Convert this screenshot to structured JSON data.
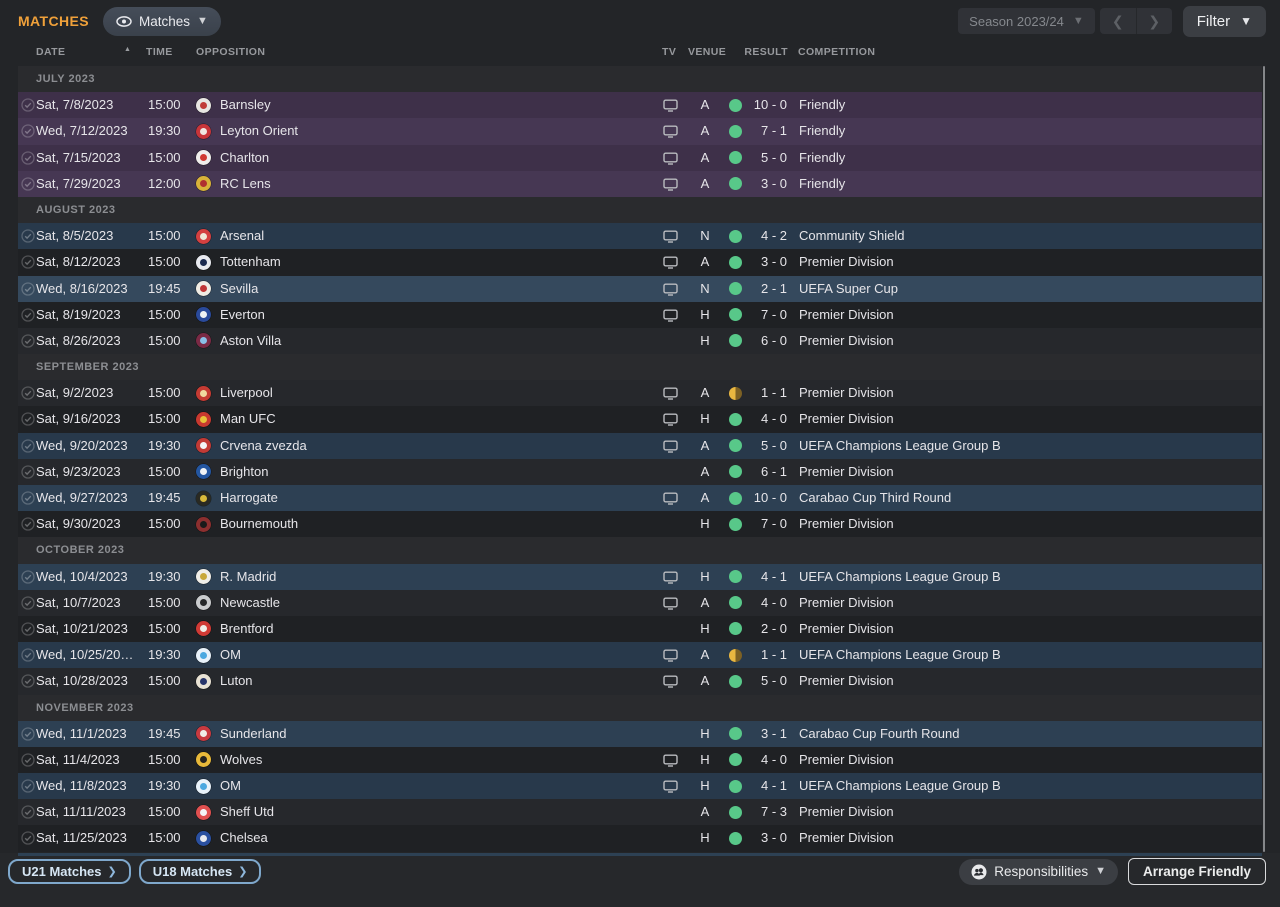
{
  "header": {
    "title": "MATCHES",
    "view_dropdown": {
      "label": "Matches"
    },
    "season_selector": {
      "label": "Season 2023/24"
    },
    "filter_button": {
      "label": "Filter"
    }
  },
  "table": {
    "columns": {
      "date": "DATE",
      "time": "TIME",
      "opposition": "OPPOSITION",
      "tv": "TV",
      "venue": "VENUE",
      "result": "RESULT",
      "competition": "COMPETITION"
    },
    "sections": [
      {
        "month": "JULY 2023",
        "rows": [
          {
            "date": "Sat, 7/8/2023",
            "time": "15:00",
            "opposition": "Barnsley",
            "tv": true,
            "venue": "A",
            "outcome": "win",
            "result": "10 - 0",
            "competition": "Friendly",
            "tone": "f0",
            "crest": {
              "bg": "#e8e6e2",
              "fg": "#c03c38"
            }
          },
          {
            "date": "Wed, 7/12/2023",
            "time": "19:30",
            "opposition": "Leyton Orient",
            "tv": true,
            "venue": "A",
            "outcome": "win",
            "result": "7 - 1",
            "competition": "Friendly",
            "tone": "f1",
            "crest": {
              "bg": "#c8353a",
              "fg": "#f0e8e2"
            }
          },
          {
            "date": "Sat, 7/15/2023",
            "time": "15:00",
            "opposition": "Charlton",
            "tv": true,
            "venue": "A",
            "outcome": "win",
            "result": "5 - 0",
            "competition": "Friendly",
            "tone": "f0",
            "crest": {
              "bg": "#f0eeec",
              "fg": "#d03a32"
            }
          },
          {
            "date": "Sat, 7/29/2023",
            "time": "12:00",
            "opposition": "RC Lens",
            "tv": true,
            "venue": "A",
            "outcome": "win",
            "result": "3 - 0",
            "competition": "Friendly",
            "tone": "f1",
            "crest": {
              "bg": "#d8b23a",
              "fg": "#b03030"
            }
          }
        ]
      },
      {
        "month": "AUGUST 2023",
        "rows": [
          {
            "date": "Sat, 8/5/2023",
            "time": "15:00",
            "opposition": "Arsenal",
            "tv": true,
            "venue": "N",
            "outcome": "win",
            "result": "4 - 2",
            "competition": "Community Shield",
            "tone": "c0",
            "crest": {
              "bg": "#d44040",
              "fg": "#f0e8d8"
            }
          },
          {
            "date": "Sat, 8/12/2023",
            "time": "15:00",
            "opposition": "Tottenham",
            "tv": true,
            "venue": "A",
            "outcome": "win",
            "result": "3 - 0",
            "competition": "Premier Division",
            "tone": "l0",
            "crest": {
              "bg": "#e8eaf0",
              "fg": "#1a2a50"
            }
          },
          {
            "date": "Wed, 8/16/2023",
            "time": "19:45",
            "opposition": "Sevilla",
            "tv": true,
            "venue": "N",
            "outcome": "win",
            "result": "2 - 1",
            "competition": "UEFA Super Cup",
            "tone": "c2",
            "crest": {
              "bg": "#f0ece4",
              "fg": "#c03535"
            }
          },
          {
            "date": "Sat, 8/19/2023",
            "time": "15:00",
            "opposition": "Everton",
            "tv": true,
            "venue": "H",
            "outcome": "win",
            "result": "7 - 0",
            "competition": "Premier Division",
            "tone": "l0",
            "crest": {
              "bg": "#2a4a9a",
              "fg": "#f0f2f4"
            }
          },
          {
            "date": "Sat, 8/26/2023",
            "time": "15:00",
            "opposition": "Aston Villa",
            "tv": false,
            "venue": "H",
            "outcome": "win",
            "result": "6 - 0",
            "competition": "Premier Division",
            "tone": "l1",
            "crest": {
              "bg": "#7a2a45",
              "fg": "#8ac0e8"
            }
          }
        ]
      },
      {
        "month": "SEPTEMBER 2023",
        "rows": [
          {
            "date": "Sat, 9/2/2023",
            "time": "15:00",
            "opposition": "Liverpool",
            "tv": true,
            "venue": "A",
            "outcome": "draw",
            "result": "1 - 1",
            "competition": "Premier Division",
            "tone": "l1",
            "crest": {
              "bg": "#c53b33",
              "fg": "#f0d9a0"
            }
          },
          {
            "date": "Sat, 9/16/2023",
            "time": "15:00",
            "opposition": "Man UFC",
            "tv": true,
            "venue": "H",
            "outcome": "win",
            "result": "4 - 0",
            "competition": "Premier Division",
            "tone": "l0",
            "crest": {
              "bg": "#c8392f",
              "fg": "#e8c23a"
            }
          },
          {
            "date": "Wed, 9/20/2023",
            "time": "19:30",
            "opposition": "Crvena zvezda",
            "tv": true,
            "venue": "A",
            "outcome": "win",
            "result": "5 - 0",
            "competition": "UEFA Champions League Group B",
            "tone": "c0",
            "crest": {
              "bg": "#c23a35",
              "fg": "#f4f4f6"
            }
          },
          {
            "date": "Sat, 9/23/2023",
            "time": "15:00",
            "opposition": "Brighton",
            "tv": false,
            "venue": "A",
            "outcome": "win",
            "result": "6 - 1",
            "competition": "Premier Division",
            "tone": "l1",
            "crest": {
              "bg": "#2456a0",
              "fg": "#f2f4f6"
            }
          },
          {
            "date": "Wed, 9/27/2023",
            "time": "19:45",
            "opposition": "Harrogate",
            "tv": true,
            "venue": "A",
            "outcome": "win",
            "result": "10 - 0",
            "competition": "Carabao Cup Third Round",
            "tone": "c1",
            "crest": {
              "bg": "#2a2a22",
              "fg": "#d8b93a"
            }
          },
          {
            "date": "Sat, 9/30/2023",
            "time": "15:00",
            "opposition": "Bournemouth",
            "tv": false,
            "venue": "H",
            "outcome": "win",
            "result": "7 - 0",
            "competition": "Premier Division",
            "tone": "l0",
            "crest": {
              "bg": "#8c2f2f",
              "fg": "#1a1a1a"
            }
          }
        ]
      },
      {
        "month": "OCTOBER 2023",
        "rows": [
          {
            "date": "Wed, 10/4/2023",
            "time": "19:30",
            "opposition": "R. Madrid",
            "tv": true,
            "venue": "H",
            "outcome": "win",
            "result": "4 - 1",
            "competition": "UEFA Champions League Group B",
            "tone": "c1",
            "crest": {
              "bg": "#f0eee8",
              "fg": "#c8a83a"
            }
          },
          {
            "date": "Sat, 10/7/2023",
            "time": "15:00",
            "opposition": "Newcastle",
            "tv": true,
            "venue": "A",
            "outcome": "win",
            "result": "4 - 0",
            "competition": "Premier Division",
            "tone": "l1",
            "crest": {
              "bg": "#caccce",
              "fg": "#26282a"
            }
          },
          {
            "date": "Sat, 10/21/2023",
            "time": "15:00",
            "opposition": "Brentford",
            "tv": false,
            "venue": "H",
            "outcome": "win",
            "result": "2 - 0",
            "competition": "Premier Division",
            "tone": "l0",
            "crest": {
              "bg": "#d03a35",
              "fg": "#f0eee8"
            }
          },
          {
            "date": "Wed, 10/25/20…",
            "time": "19:30",
            "opposition": "OM",
            "tv": true,
            "venue": "A",
            "outcome": "draw",
            "result": "1 - 1",
            "competition": "UEFA Champions League Group B",
            "tone": "c0",
            "crest": {
              "bg": "#e8f2fa",
              "fg": "#4aa8e0"
            }
          },
          {
            "date": "Sat, 10/28/2023",
            "time": "15:00",
            "opposition": "Luton",
            "tv": true,
            "venue": "A",
            "outcome": "win",
            "result": "5 - 0",
            "competition": "Premier Division",
            "tone": "l1",
            "crest": {
              "bg": "#e8e2d4",
              "fg": "#27356a"
            }
          }
        ]
      },
      {
        "month": "NOVEMBER 2023",
        "rows": [
          {
            "date": "Wed, 11/1/2023",
            "time": "19:45",
            "opposition": "Sunderland",
            "tv": false,
            "venue": "H",
            "outcome": "win",
            "result": "3 - 1",
            "competition": "Carabao Cup Fourth Round",
            "tone": "c1",
            "crest": {
              "bg": "#c83a40",
              "fg": "#f0eee8"
            }
          },
          {
            "date": "Sat, 11/4/2023",
            "time": "15:00",
            "opposition": "Wolves",
            "tv": true,
            "venue": "H",
            "outcome": "win",
            "result": "4 - 0",
            "competition": "Premier Division",
            "tone": "l0",
            "crest": {
              "bg": "#e8b93a",
              "fg": "#26241f"
            }
          },
          {
            "date": "Wed, 11/8/2023",
            "time": "19:30",
            "opposition": "OM",
            "tv": true,
            "venue": "H",
            "outcome": "win",
            "result": "4 - 1",
            "competition": "UEFA Champions League Group B",
            "tone": "c0",
            "crest": {
              "bg": "#e8f2fa",
              "fg": "#4aa8e0"
            }
          },
          {
            "date": "Sat, 11/11/2023",
            "time": "15:00",
            "opposition": "Sheff Utd",
            "tv": false,
            "venue": "A",
            "outcome": "win",
            "result": "7 - 3",
            "competition": "Premier Division",
            "tone": "l1",
            "crest": {
              "bg": "#e05050",
              "fg": "#f4f4f6"
            }
          },
          {
            "date": "Sat, 11/25/2023",
            "time": "15:00",
            "opposition": "Chelsea",
            "tv": false,
            "venue": "H",
            "outcome": "win",
            "result": "3 - 0",
            "competition": "Premier Division",
            "tone": "l0",
            "crest": {
              "bg": "#2a50a0",
              "fg": "#e8eaf0"
            }
          }
        ]
      }
    ]
  },
  "footer": {
    "u21_matches": {
      "label": "U21 Matches"
    },
    "u18_matches": {
      "label": "U18 Matches"
    },
    "responsibilities": {
      "label": "Responsibilities"
    },
    "arrange_friendly": {
      "label": "Arrange Friendly"
    }
  },
  "colors": {
    "accent_orange": "#f0a13a",
    "win_green": "#58c889",
    "draw_yellow": "#e9b740",
    "draw_dark": "#7d6124",
    "link_blue": "#7fa8cc",
    "tones": {
      "f0": "#3e3049",
      "f1": "#463753",
      "l0": "#1f2124",
      "l1": "#26282c",
      "c0": "#28394b",
      "c1": "#2d4053",
      "c2": "#35495d"
    }
  }
}
